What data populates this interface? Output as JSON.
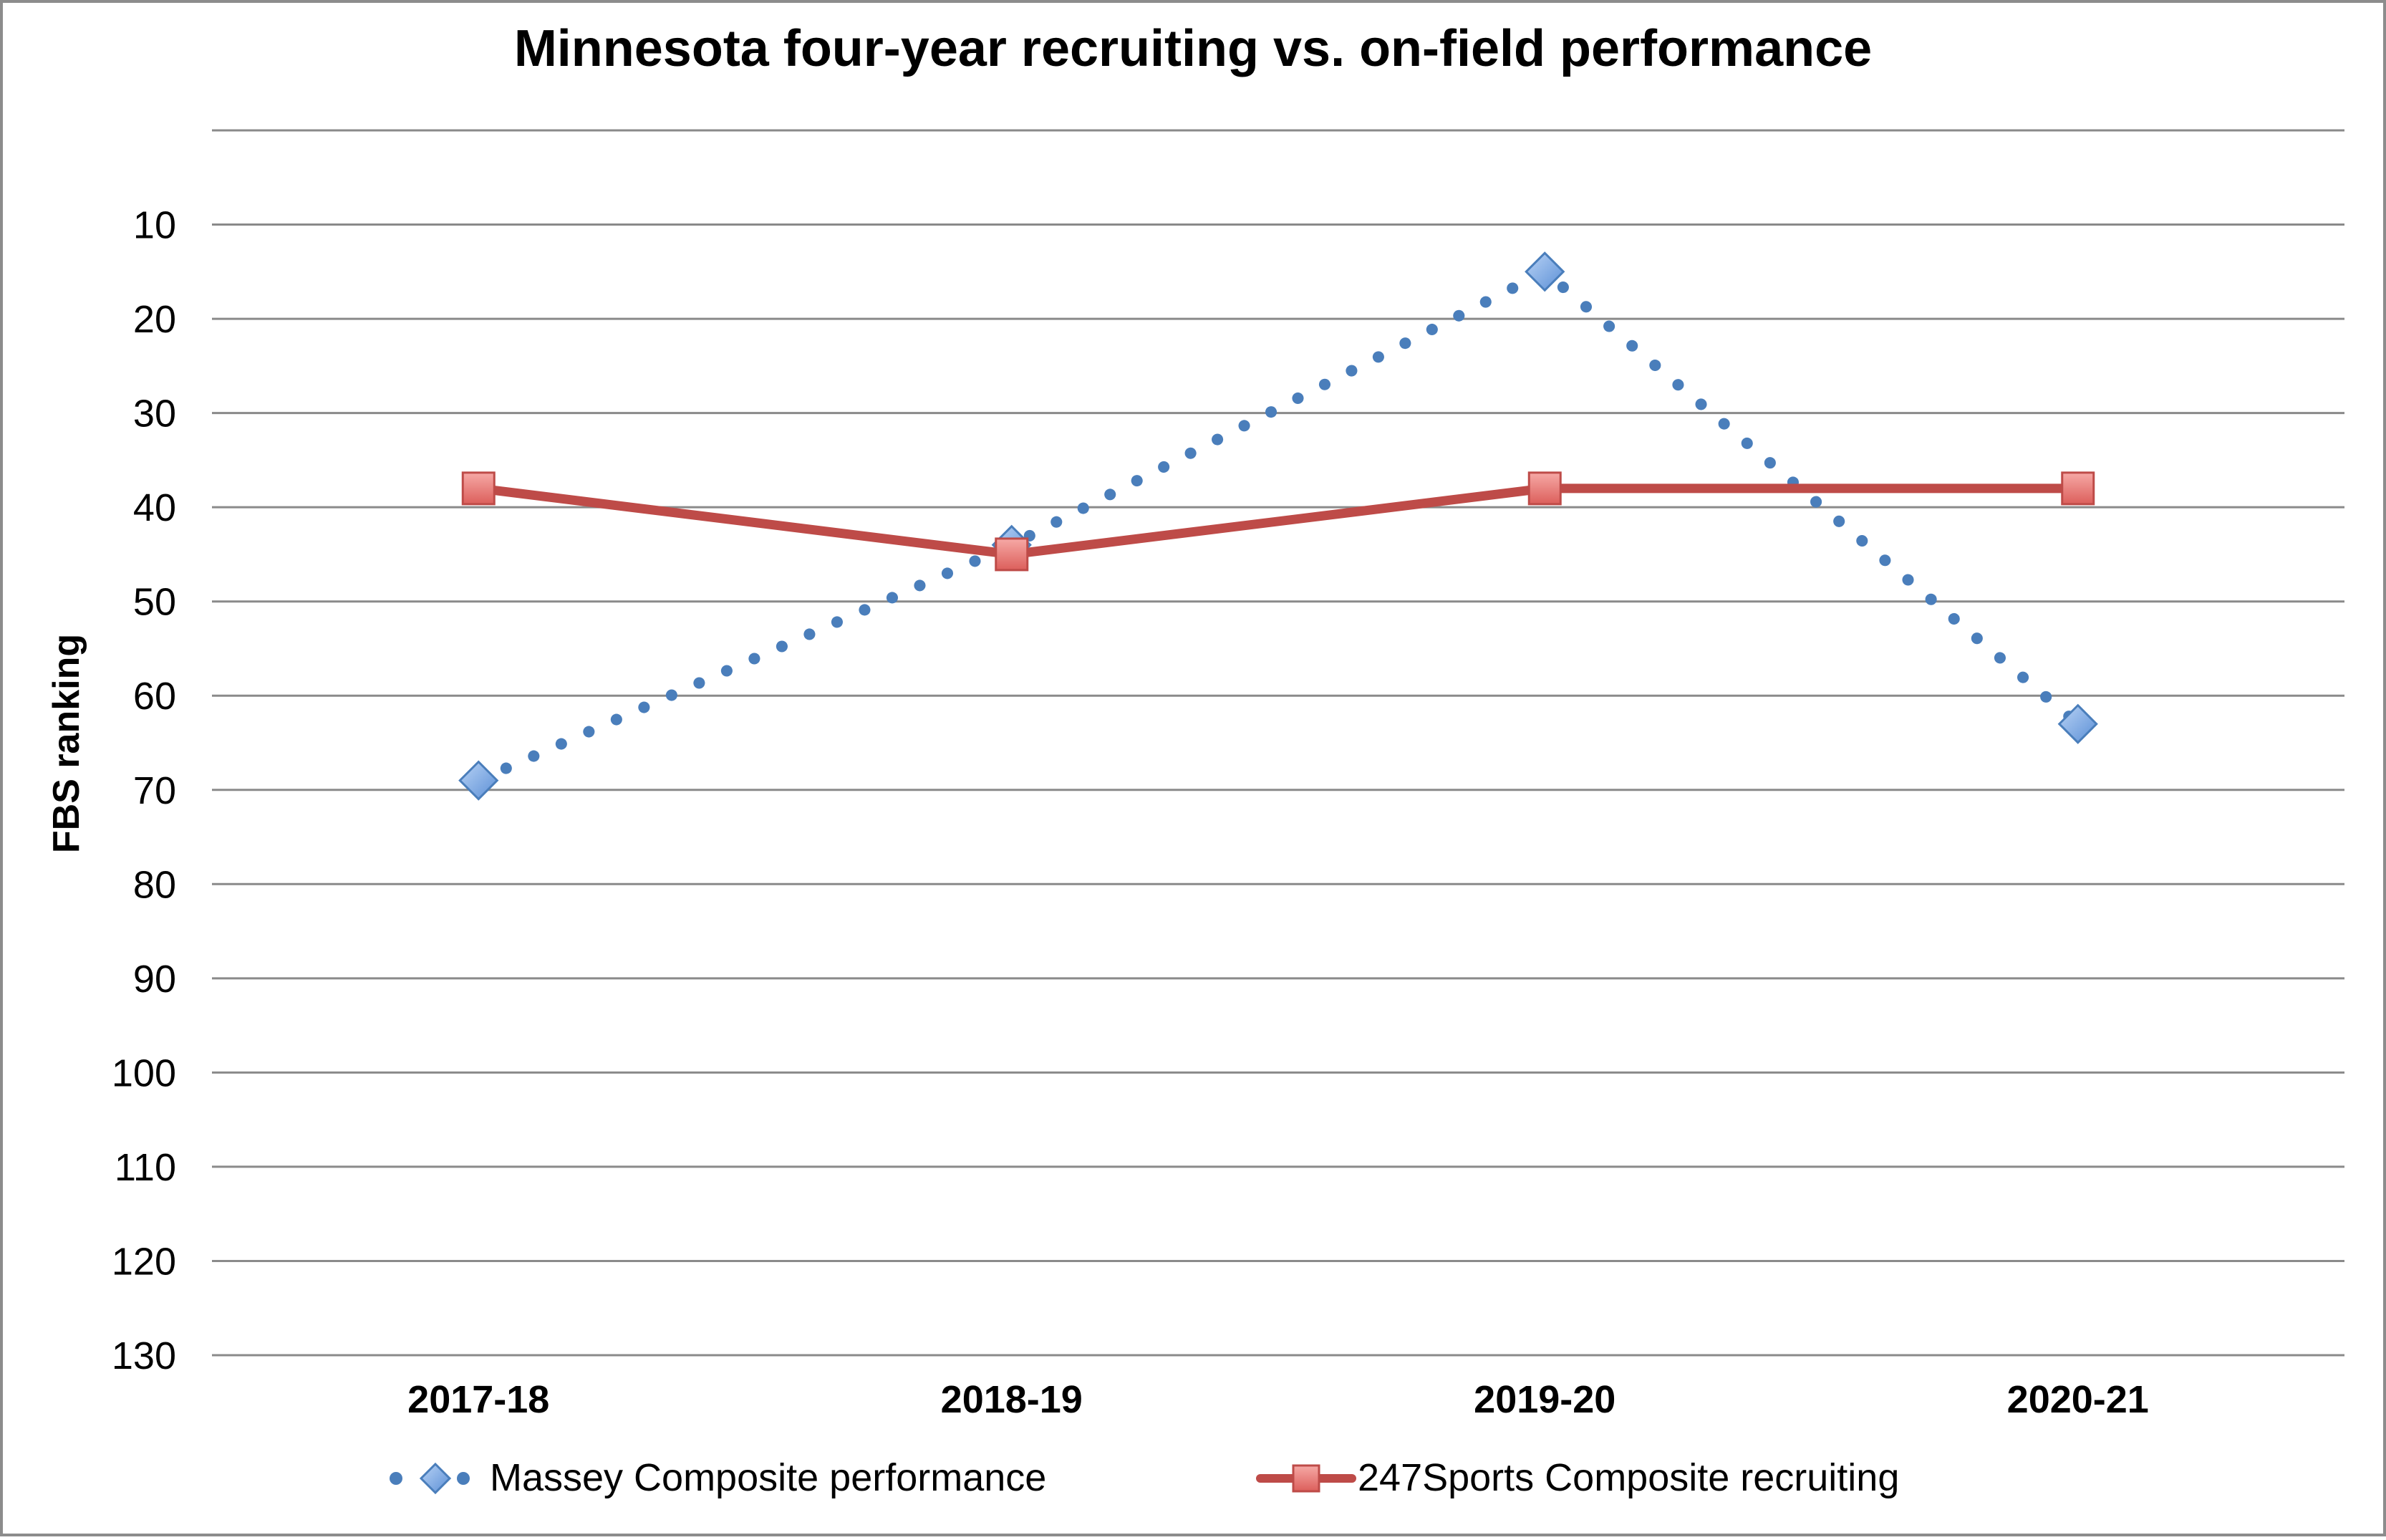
{
  "chart_data": {
    "type": "line",
    "title": "Minnesota four-year recruiting vs. on-field performance",
    "xlabel": "",
    "ylabel": "FBS ranking",
    "categories": [
      "2017-18",
      "2018-19",
      "2019-20",
      "2020-21"
    ],
    "ylim": [
      0,
      130
    ],
    "y_axis_reversed": true,
    "yticks": [
      10,
      20,
      30,
      40,
      50,
      60,
      70,
      80,
      90,
      100,
      110,
      120,
      130
    ],
    "grid": true,
    "legend_position": "bottom",
    "series": [
      {
        "name": "Massey Composite performance",
        "values": [
          69,
          44,
          15,
          63
        ],
        "color": "#4a7ebb",
        "marker_color": "#7faee8",
        "line_style": "dotted",
        "marker": "diamond"
      },
      {
        "name": "247Sports Composite recruiting",
        "values": [
          38,
          45,
          38,
          38
        ],
        "color": "#be4b48",
        "marker_color": "#f08784",
        "line_style": "solid",
        "marker": "square"
      }
    ]
  }
}
